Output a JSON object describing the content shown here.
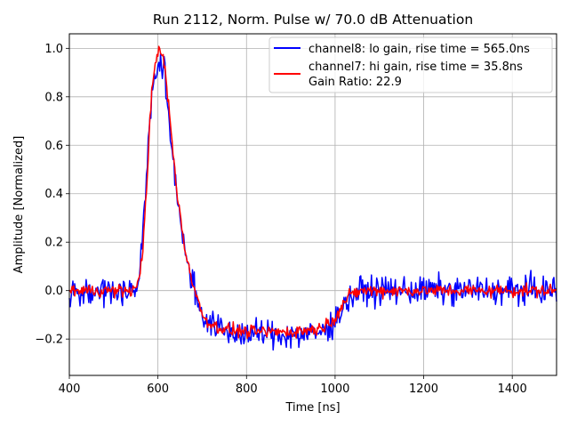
{
  "chart_data": {
    "type": "line",
    "title": "Run 2112, Norm. Pulse w/ 70.0 dB Attenuation",
    "xlabel": "Time [ns]",
    "ylabel": "Amplitude [Normalized]",
    "xlim": [
      400,
      1500
    ],
    "ylim": [
      -0.35,
      1.06
    ],
    "xticks": [
      400,
      600,
      800,
      1000,
      1200,
      1400
    ],
    "xtick_labels": [
      "400",
      "600",
      "800",
      "1000",
      "1200",
      "1400"
    ],
    "yticks": [
      -0.2,
      0.0,
      0.2,
      0.4,
      0.6,
      0.8,
      1.0
    ],
    "ytick_labels": [
      "−0.2",
      "0.0",
      "0.2",
      "0.4",
      "0.6",
      "0.8",
      "1.0"
    ],
    "grid": true,
    "legend_position": "top-right",
    "annotation": "Gain Ratio: 22.9",
    "series": [
      {
        "name": "channel8: lo gain, rise time = 565.0ns",
        "color": "#0000ff",
        "noise_amplitude": 0.08,
        "x": [
          400,
          540,
          555,
          565,
          575,
          585,
          595,
          605,
          615,
          625,
          635,
          645,
          660,
          680,
          700,
          720,
          750,
          800,
          850,
          900,
          950,
          975,
          1000,
          1020,
          1040,
          1060,
          1100,
          1200,
          1300,
          1400,
          1500
        ],
        "y": [
          0.0,
          0.0,
          0.02,
          0.2,
          0.5,
          0.8,
          0.9,
          0.95,
          0.88,
          0.7,
          0.52,
          0.38,
          0.18,
          0.02,
          -0.1,
          -0.14,
          -0.17,
          -0.18,
          -0.18,
          -0.18,
          -0.18,
          -0.17,
          -0.12,
          -0.06,
          -0.02,
          0.0,
          0.0,
          0.0,
          0.0,
          0.0,
          0.0
        ]
      },
      {
        "name": "channel7: hi gain, rise time = 35.8ns",
        "color": "#ff0000",
        "noise_amplitude": 0.035,
        "x": [
          400,
          540,
          555,
          565,
          575,
          585,
          595,
          605,
          615,
          625,
          635,
          645,
          660,
          680,
          700,
          720,
          750,
          800,
          850,
          900,
          950,
          975,
          1000,
          1020,
          1040,
          1060,
          1100,
          1200,
          1300,
          1400,
          1500
        ],
        "y": [
          0.0,
          0.0,
          0.02,
          0.15,
          0.45,
          0.8,
          0.95,
          1.0,
          0.93,
          0.75,
          0.55,
          0.38,
          0.18,
          0.02,
          -0.1,
          -0.14,
          -0.16,
          -0.17,
          -0.17,
          -0.17,
          -0.16,
          -0.15,
          -0.11,
          -0.05,
          -0.01,
          0.0,
          0.0,
          0.0,
          0.0,
          0.0,
          0.0
        ]
      }
    ]
  }
}
